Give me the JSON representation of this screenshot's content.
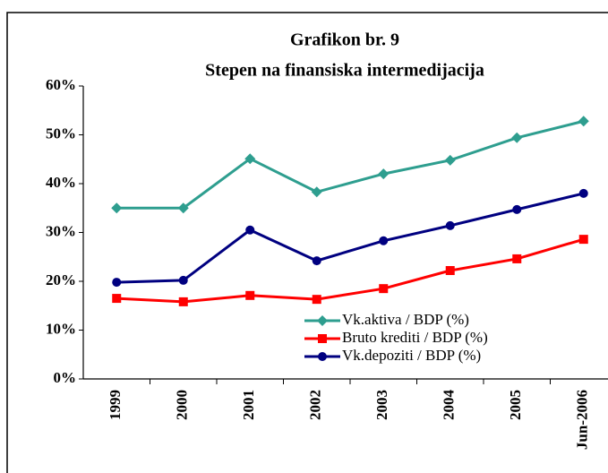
{
  "chart_data": {
    "type": "line",
    "title": "Grafikon br. 9",
    "subtitle": "Stepen na finansiska intermedijacija",
    "categories": [
      "1999",
      "2000",
      "2001",
      "2002",
      "2003",
      "2004",
      "2005",
      "Jun-2006"
    ],
    "series": [
      {
        "name": "Vk.aktiva / BDP (%)",
        "color": "#2e9e8f",
        "marker": "diamond",
        "values": [
          35.0,
          35.0,
          45.1,
          38.3,
          42.0,
          44.8,
          49.4,
          52.8
        ]
      },
      {
        "name": "Bruto krediti / BDP (%)",
        "color": "#ff0000",
        "marker": "square",
        "values": [
          16.5,
          15.8,
          17.1,
          16.3,
          18.5,
          22.2,
          24.6,
          28.6
        ]
      },
      {
        "name": "Vk.depoziti / BDP (%)",
        "color": "#000080",
        "marker": "circle",
        "values": [
          19.8,
          20.2,
          30.5,
          24.2,
          28.3,
          31.4,
          34.7,
          38.0
        ]
      }
    ],
    "ylim": [
      0,
      60
    ],
    "yticks": [
      {
        "value": 0,
        "label": "0%"
      },
      {
        "value": 10,
        "label": "10%"
      },
      {
        "value": 20,
        "label": "20%"
      },
      {
        "value": 30,
        "label": "30%"
      },
      {
        "value": 40,
        "label": "40%"
      },
      {
        "value": 50,
        "label": "50%"
      },
      {
        "value": 60,
        "label": "60%"
      }
    ],
    "legend": "lower right"
  }
}
